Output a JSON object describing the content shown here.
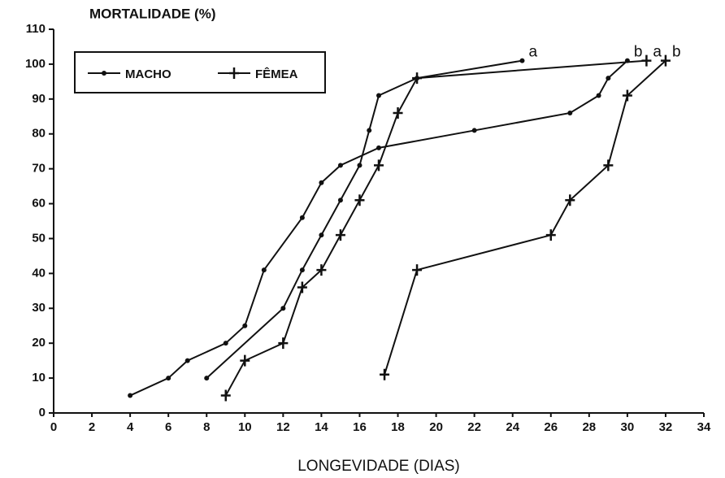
{
  "chart_data": {
    "type": "line",
    "xlabel": "LONGEVIDADE (DIAS)",
    "ylabel": "MORTALIDADE (%)",
    "xlim": [
      0,
      34
    ],
    "xticks": [
      0,
      2,
      4,
      6,
      8,
      10,
      12,
      14,
      16,
      18,
      20,
      22,
      24,
      26,
      28,
      30,
      32,
      34
    ],
    "ylim": [
      0,
      110
    ],
    "yticks": [
      0,
      10,
      20,
      30,
      40,
      50,
      60,
      70,
      80,
      90,
      100,
      110
    ],
    "grid": false,
    "legend": "upper left",
    "series": [
      {
        "name": "MACHO",
        "marker": "dot",
        "color": "#111111",
        "end_label": "b",
        "x": [
          4,
          6,
          7,
          9,
          10,
          11,
          13,
          14,
          15,
          17,
          22,
          27,
          28.5,
          29,
          30
        ],
        "values": [
          5,
          10,
          15,
          20,
          25,
          41,
          56,
          66,
          71,
          76,
          81,
          86,
          91,
          96,
          101
        ]
      },
      {
        "name": "MACHO",
        "marker": "dot",
        "color": "#111111",
        "end_label": "a",
        "x": [
          8,
          12,
          13,
          14,
          15,
          16,
          16.5,
          17,
          19,
          24.5
        ],
        "values": [
          10,
          30,
          41,
          51,
          61,
          71,
          81,
          91,
          96,
          101
        ]
      },
      {
        "name": "FÊMEA",
        "marker": "plus",
        "color": "#111111",
        "end_label": "a",
        "x": [
          9,
          10,
          12,
          13,
          14,
          15,
          16,
          17,
          18,
          19,
          31
        ],
        "values": [
          5,
          15,
          20,
          36,
          41,
          51,
          61,
          71,
          86,
          96,
          101
        ]
      },
      {
        "name": "FÊMEA",
        "marker": "plus",
        "color": "#111111",
        "end_label": "b",
        "x": [
          17.3,
          19,
          26,
          27,
          29,
          30,
          32
        ],
        "values": [
          11,
          41,
          51,
          61,
          71,
          91,
          101
        ]
      }
    ]
  }
}
